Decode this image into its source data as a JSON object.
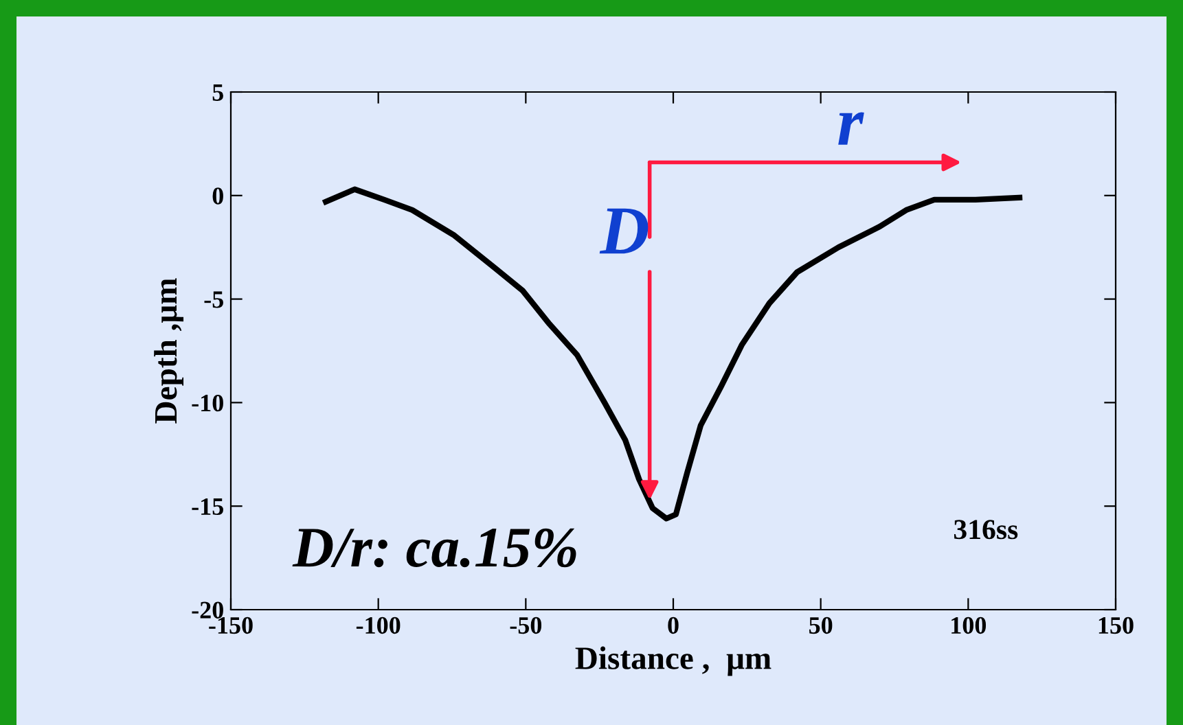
{
  "chart_data": {
    "type": "line",
    "xlabel": "Distance ,  μm",
    "ylabel": "Depth ,μm",
    "x": [
      -117.8,
      -108,
      -98,
      -88.5,
      -74.5,
      -60.5,
      -51,
      -42,
      -32.6,
      -23.3,
      -16.3,
      -11.6,
      -7,
      -2.3,
      0.9,
      4.7,
      9.3,
      16.3,
      23.3,
      32.6,
      42,
      56,
      70,
      79,
      88.5,
      102.5,
      117.4
    ],
    "series": [
      {
        "color": "#000000",
        "values": [
          -0.3,
          0.3,
          -0.2,
          -0.7,
          -1.9,
          -3.5,
          -4.6,
          -6.2,
          -7.7,
          -10,
          -11.8,
          -13.7,
          -15.1,
          -15.6,
          -15.4,
          -13.4,
          -11.1,
          -9.2,
          -7.2,
          -5.2,
          -3.7,
          -2.5,
          -1.5,
          -0.7,
          -0.2,
          -0.2,
          -0.1
        ]
      }
    ],
    "xlim": [
      -150,
      150
    ],
    "xticks": [
      -150,
      -100,
      -50,
      0,
      50,
      100,
      150
    ],
    "ylim": [
      -20,
      5
    ],
    "yticks": [
      -20,
      -15,
      -10,
      -5,
      0,
      5
    ],
    "grid": false,
    "legend": false,
    "marker": "none",
    "line_style": "solid",
    "annotations": [
      {
        "text": "D",
        "x": -8,
        "y": -14.7
      },
      "r",
      "D/r: ca.15%",
      "316ss"
    ]
  }
}
